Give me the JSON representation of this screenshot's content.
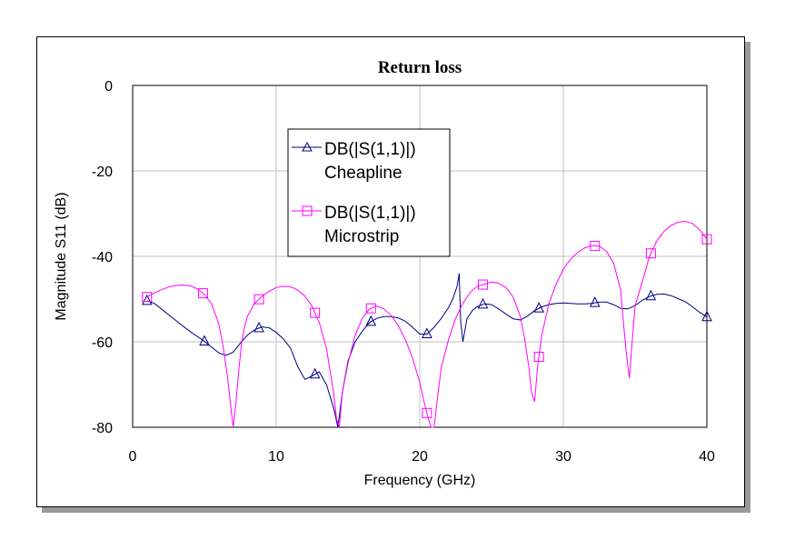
{
  "chart_data": {
    "type": "line",
    "title": "Return loss",
    "xlabel": "Frequency (GHz)",
    "ylabel": "Magnitude S11 (dB)",
    "xlim": [
      0,
      40
    ],
    "ylim": [
      -80,
      0
    ],
    "xticks": [
      0,
      10,
      20,
      30,
      40
    ],
    "yticks": [
      0,
      -20,
      -40,
      -60,
      -80
    ],
    "grid": true,
    "legend_position": "upper-left, inside plot",
    "series": [
      {
        "name": "DB(|S(1,1)|)",
        "name_line2": "Cheapline",
        "color": "#000080",
        "marker": "triangle",
        "x": [
          1,
          1.5,
          2,
          3,
          4,
          5,
          6,
          6.5,
          7,
          7.5,
          8,
          8.5,
          9,
          9.5,
          10,
          10.5,
          11,
          11.5,
          12,
          12.5,
          13,
          13.5,
          14,
          14.3,
          14.6,
          15,
          15.5,
          16,
          16.5,
          17,
          17.5,
          18,
          18.5,
          19,
          19.5,
          20,
          20.5,
          21,
          21.5,
          22,
          22.3,
          22.6,
          22.75,
          22.85,
          23,
          23.3,
          23.7,
          24,
          24.5,
          25,
          25.5,
          26,
          26.5,
          27,
          27.5,
          28,
          28.5,
          29,
          29.5,
          30,
          30.5,
          31,
          31.5,
          32,
          32.5,
          33,
          33.5,
          34,
          34.5,
          35,
          35.5,
          36,
          36.5,
          37,
          37.5,
          38,
          38.5,
          39,
          39.5,
          40
        ],
        "y": [
          -50.4,
          -51.0,
          -52.3,
          -55.0,
          -57.6,
          -59.9,
          -62.6,
          -63.2,
          -62.4,
          -60.3,
          -58.4,
          -57.2,
          -56.5,
          -56.7,
          -57.8,
          -59.3,
          -61.5,
          -65.8,
          -68.8,
          -68.0,
          -67.0,
          -70.0,
          -75.5,
          -80.0,
          -72.0,
          -64.5,
          -60.0,
          -57.5,
          -55.5,
          -54.5,
          -54.1,
          -54.1,
          -54.4,
          -55.2,
          -56.6,
          -58.2,
          -58.2,
          -56.6,
          -54.5,
          -52.0,
          -50.0,
          -47.0,
          -44.0,
          -55.0,
          -60.0,
          -54.5,
          -52.5,
          -51.8,
          -51.1,
          -51.3,
          -52.3,
          -53.5,
          -54.6,
          -54.9,
          -54.0,
          -52.7,
          -51.8,
          -51.3,
          -51.0,
          -50.9,
          -51.0,
          -51.1,
          -51.1,
          -51.0,
          -50.7,
          -50.7,
          -51.3,
          -52.2,
          -52.3,
          -51.5,
          -50.3,
          -49.4,
          -48.9,
          -48.8,
          -49.2,
          -49.9,
          -50.6,
          -51.8,
          -53.1,
          -54.2
        ],
        "marker_x": [
          1,
          5,
          8.8,
          12.7,
          16.6,
          20.5,
          24.4,
          28.3,
          32.2,
          36.1,
          40
        ]
      },
      {
        "name": "DB(|S(1,1)|)",
        "name_line2": "Microstrip",
        "color": "#ff00ff",
        "marker": "square",
        "x": [
          1,
          1.5,
          2,
          2.5,
          3,
          3.5,
          4,
          4.5,
          5,
          5.5,
          6,
          6.3,
          6.6,
          6.8,
          7,
          7.2,
          7.4,
          7.6,
          7.8,
          8,
          8.5,
          9,
          9.5,
          10,
          10.5,
          11,
          11.5,
          12,
          12.5,
          13,
          13.5,
          14,
          14.2,
          14.4,
          14.6,
          15,
          15.5,
          16,
          16.5,
          17,
          17.5,
          18,
          18.5,
          19,
          19.5,
          20,
          20.3,
          20.6,
          20.8,
          21,
          21.2,
          21.5,
          22,
          22.5,
          23,
          23.5,
          24,
          24.5,
          25,
          25.5,
          26,
          26.5,
          27,
          27.3,
          27.6,
          27.8,
          28,
          28.2,
          28.5,
          29,
          29.5,
          30,
          30.5,
          31,
          31.5,
          32,
          32.5,
          33,
          33.5,
          34,
          34.2,
          34.4,
          34.6,
          34.8,
          35,
          35.5,
          36,
          36.5,
          37,
          37.5,
          38,
          38.5,
          39,
          39.5,
          40
        ],
        "y": [
          -49.5,
          -48.6,
          -47.8,
          -47.2,
          -46.8,
          -46.7,
          -46.9,
          -47.6,
          -48.9,
          -51.1,
          -55.8,
          -61.0,
          -68.0,
          -74.0,
          -80.0,
          -74.0,
          -66.5,
          -60.0,
          -56.5,
          -54.0,
          -51.0,
          -49.4,
          -48.2,
          -47.3,
          -47.0,
          -47.1,
          -47.9,
          -49.3,
          -51.7,
          -55.5,
          -61.5,
          -72.0,
          -78.0,
          -80.0,
          -72.0,
          -65.0,
          -58.5,
          -54.5,
          -52.3,
          -51.6,
          -52.3,
          -53.8,
          -56.2,
          -59.5,
          -63.8,
          -69.5,
          -74.0,
          -78.0,
          -80.0,
          -80.0,
          -74.0,
          -66.0,
          -59.5,
          -54.5,
          -51.0,
          -48.5,
          -47.0,
          -46.5,
          -46.0,
          -46.3,
          -47.3,
          -49.5,
          -54.0,
          -59.0,
          -66.0,
          -72.0,
          -74.0,
          -66.0,
          -58.5,
          -51.0,
          -46.5,
          -43.0,
          -40.7,
          -39.1,
          -38.0,
          -37.5,
          -37.6,
          -38.8,
          -41.5,
          -48.0,
          -56.0,
          -63.0,
          -68.5,
          -60.0,
          -51.5,
          -46.0,
          -40.0,
          -36.5,
          -34.2,
          -32.8,
          -32.0,
          -31.8,
          -32.3,
          -33.8,
          -36.0
        ],
        "marker_x": [
          1,
          4.9,
          8.8,
          12.7,
          16.6,
          20.5,
          24.4,
          28.3,
          32.2,
          36.1,
          40
        ]
      }
    ]
  },
  "colors": {
    "grid": "#c0c0c0",
    "frame_shadow": "#9a9a9a"
  }
}
